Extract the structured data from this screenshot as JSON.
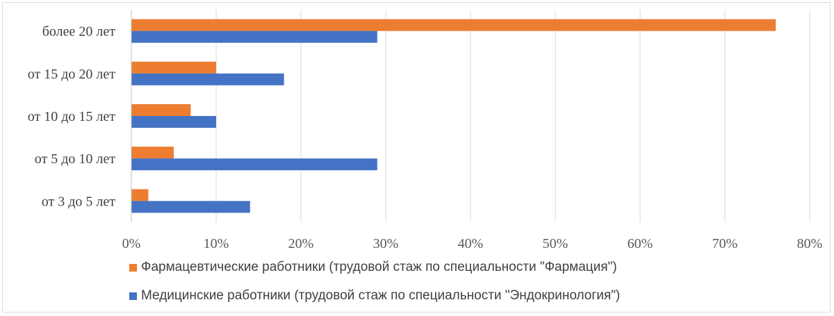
{
  "chart_data": {
    "type": "bar",
    "orientation": "horizontal",
    "categories": [
      "более 20 лет",
      "от 15 до 20 лет",
      "от 10 до 15 лет",
      "от 5 до 10 лет",
      "от 3 до 5 лет"
    ],
    "series": [
      {
        "name": "Фармацевтические работники (трудовой стаж по специальности \"Фармация\")",
        "color": "#ED7D31",
        "values": [
          76,
          10,
          7,
          5,
          2
        ]
      },
      {
        "name": "Медицинские работники (трудовой стаж по специальности \"Эндокринология\")",
        "color": "#4472C4",
        "values": [
          29,
          18,
          10,
          29,
          14
        ]
      }
    ],
    "x_ticks": [
      "0%",
      "10%",
      "20%",
      "30%",
      "40%",
      "50%",
      "60%",
      "70%",
      "80%"
    ],
    "xlim": [
      0,
      80
    ],
    "unit": "%",
    "grid": true,
    "legend_position": "bottom"
  }
}
